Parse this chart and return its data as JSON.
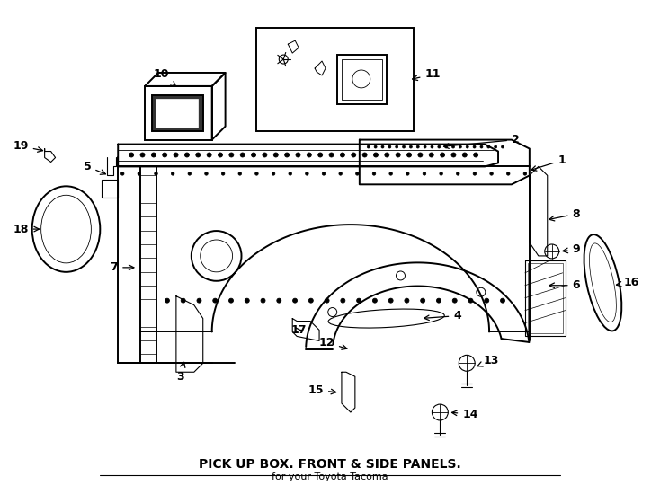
{
  "title": "PICK UP BOX. FRONT & SIDE PANELS.",
  "subtitle": "for your Toyota Tacoma",
  "bg_color": "#ffffff",
  "line_color": "#000000",
  "fig_width": 7.34,
  "fig_height": 5.4,
  "lw_main": 1.4,
  "lw_thin": 0.8,
  "lw_thick": 2.0
}
